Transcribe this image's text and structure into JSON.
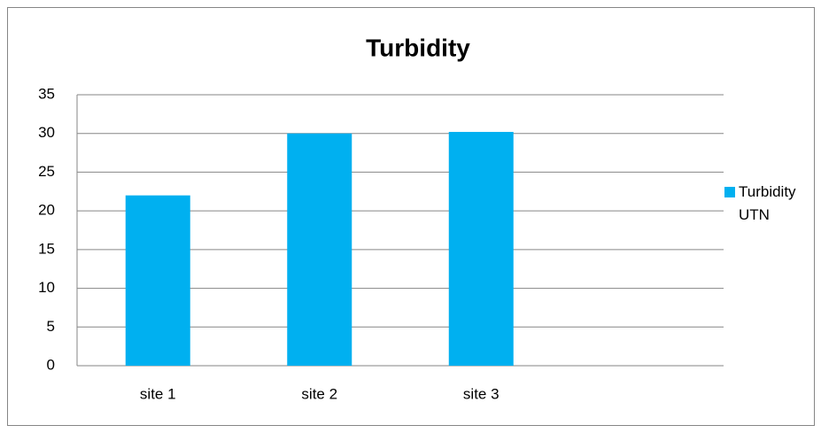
{
  "chart_data": {
    "type": "bar",
    "title": "Turbidity",
    "categories": [
      "site 1",
      "site 2",
      "site 3",
      null
    ],
    "series": [
      {
        "name": "Turbidity UTN",
        "color": "#00b0f0",
        "values": [
          22,
          30,
          30.2,
          null
        ]
      }
    ],
    "ylim": [
      0,
      35
    ],
    "yticks": [
      0,
      5,
      10,
      15,
      20,
      25,
      30,
      35
    ],
    "grid": true,
    "legend": "right"
  }
}
